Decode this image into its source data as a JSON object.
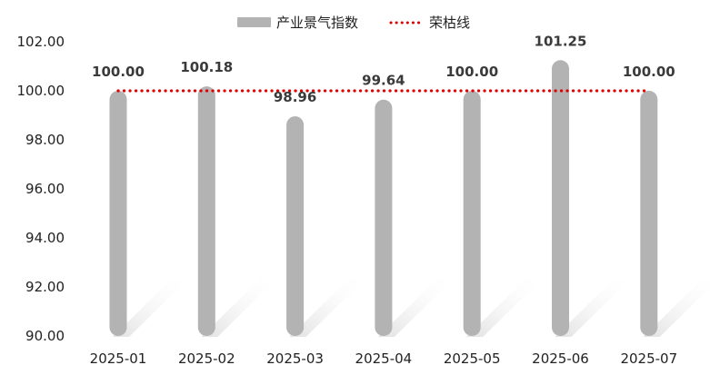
{
  "chart_data": {
    "type": "bar",
    "title": "",
    "xlabel": "",
    "ylabel": "",
    "categories": [
      "2025-01",
      "2025-02",
      "2025-03",
      "2025-04",
      "2025-05",
      "2025-06",
      "2025-07"
    ],
    "series": [
      {
        "name": "产业景气指数",
        "type": "bar",
        "color": "#b3b3b3",
        "values": [
          100.0,
          100.18,
          98.96,
          99.64,
          100.0,
          101.25,
          100.0
        ],
        "labels": [
          "100.00",
          "100.18",
          "98.96",
          "99.64",
          "100.00",
          "101.25",
          "100.00"
        ]
      },
      {
        "name": "荣枯线",
        "type": "line",
        "style": "dotted",
        "color": "#e00000",
        "value": 100
      }
    ],
    "ylim": [
      90,
      102
    ],
    "ytick_labels": [
      "90.00",
      "92.00",
      "94.00",
      "96.00",
      "98.00",
      "100.00",
      "102.00"
    ],
    "legend": "top-center",
    "grid": false
  }
}
